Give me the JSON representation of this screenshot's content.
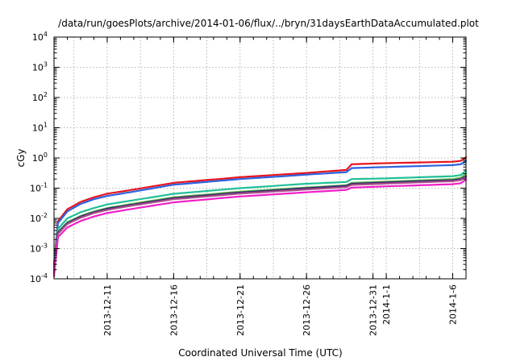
{
  "chart_data": {
    "type": "line",
    "title": "/data/run/goesPlots/archive/2014-01-06/flux/../bryn/31daysEarthDataAccumulated.plot",
    "xlabel": "Coordinated Universal Time (UTC)",
    "ylabel": "cGy",
    "yscale": "log",
    "ylim": [
      0.0001,
      10000
    ],
    "xlim": [
      "2013-12-07",
      "2014-01-07"
    ],
    "grid": true,
    "y_ticks": [
      {
        "base": "10",
        "exp": "-4",
        "value": 0.0001
      },
      {
        "base": "10",
        "exp": "-3",
        "value": 0.001
      },
      {
        "base": "10",
        "exp": "-2",
        "value": 0.01
      },
      {
        "base": "10",
        "exp": "-1",
        "value": 0.1
      },
      {
        "base": "10",
        "exp": "0",
        "value": 1
      },
      {
        "base": "10",
        "exp": "1",
        "value": 10
      },
      {
        "base": "10",
        "exp": "2",
        "value": 100
      },
      {
        "base": "10",
        "exp": "3",
        "value": 1000
      },
      {
        "base": "10",
        "exp": "4",
        "value": 10000
      }
    ],
    "x_ticks": [
      {
        "label": "2013-12-11",
        "date": "2013-12-11"
      },
      {
        "label": "2013-12-16",
        "date": "2013-12-16"
      },
      {
        "label": "2013-12-21",
        "date": "2013-12-21"
      },
      {
        "label": "2013-12-26",
        "date": "2013-12-26"
      },
      {
        "label": "2013-12-31",
        "date": "2013-12-31"
      },
      {
        "label": "2014-1-1",
        "date": "2014-01-01"
      },
      {
        "label": "2014-1-6",
        "date": "2014-01-06"
      }
    ],
    "series": [
      {
        "color": "#e8141c",
        "x": [
          "2013-12-07",
          "2013-12-07.3",
          "2013-12-08",
          "2013-12-09",
          "2013-12-10",
          "2013-12-11",
          "2013-12-13",
          "2013-12-16",
          "2013-12-21",
          "2013-12-26",
          "2013-12-29",
          "2013-12-29.4",
          "2014-01-01",
          "2014-01-06",
          "2014-01-06.6",
          "2014-01-07"
        ],
        "y": [
          0.0003,
          0.008,
          0.02,
          0.035,
          0.05,
          0.065,
          0.09,
          0.15,
          0.23,
          0.32,
          0.4,
          0.62,
          0.67,
          0.75,
          0.8,
          1.05
        ]
      },
      {
        "color": "#2c62e0",
        "x": [
          "2013-12-07",
          "2013-12-07.3",
          "2013-12-08",
          "2013-12-09",
          "2013-12-10",
          "2013-12-11",
          "2013-12-13",
          "2013-12-16",
          "2013-12-21",
          "2013-12-26",
          "2013-12-29",
          "2013-12-29.4",
          "2014-01-01",
          "2014-01-06",
          "2014-01-06.6",
          "2014-01-07"
        ],
        "y": [
          0.00025,
          0.007,
          0.017,
          0.03,
          0.043,
          0.055,
          0.077,
          0.13,
          0.2,
          0.28,
          0.34,
          0.46,
          0.5,
          0.58,
          0.62,
          0.8
        ]
      },
      {
        "color": "#1fc097",
        "x": [
          "2013-12-07",
          "2013-12-07.3",
          "2013-12-08",
          "2013-12-09",
          "2013-12-10",
          "2013-12-11",
          "2013-12-13",
          "2013-12-16",
          "2013-12-21",
          "2013-12-26",
          "2013-12-29",
          "2013-12-29.4",
          "2014-01-01",
          "2014-01-06",
          "2014-01-06.6",
          "2014-01-07"
        ],
        "y": [
          0.0002,
          0.0045,
          0.01,
          0.016,
          0.022,
          0.029,
          0.04,
          0.065,
          0.1,
          0.14,
          0.16,
          0.2,
          0.21,
          0.25,
          0.27,
          0.38
        ]
      },
      {
        "color": "#66c64a",
        "x": [
          "2013-12-07",
          "2013-12-07.3",
          "2013-12-08",
          "2013-12-09",
          "2013-12-10",
          "2013-12-11",
          "2013-12-13",
          "2013-12-16",
          "2013-12-21",
          "2013-12-26",
          "2013-12-29",
          "2013-12-29.4",
          "2014-01-01",
          "2014-01-06",
          "2014-01-06.6",
          "2014-01-07"
        ],
        "y": [
          0.00017,
          0.0036,
          0.0075,
          0.012,
          0.017,
          0.022,
          0.031,
          0.05,
          0.077,
          0.105,
          0.125,
          0.15,
          0.165,
          0.2,
          0.22,
          0.3
        ]
      },
      {
        "color": "#3a2a6e",
        "x": [
          "2013-12-07",
          "2013-12-07.3",
          "2013-12-08",
          "2013-12-09",
          "2013-12-10",
          "2013-12-11",
          "2013-12-13",
          "2013-12-16",
          "2013-12-21",
          "2013-12-26",
          "2013-12-29",
          "2013-12-29.4",
          "2014-01-01",
          "2014-01-06",
          "2014-01-06.6",
          "2014-01-07"
        ],
        "y": [
          0.00016,
          0.0034,
          0.007,
          0.0115,
          0.016,
          0.021,
          0.029,
          0.047,
          0.072,
          0.1,
          0.12,
          0.14,
          0.155,
          0.185,
          0.2,
          0.25
        ]
      },
      {
        "color": "#a8508a",
        "x": [
          "2013-12-07",
          "2013-12-07.3",
          "2013-12-08",
          "2013-12-09",
          "2013-12-10",
          "2013-12-11",
          "2013-12-13",
          "2013-12-16",
          "2013-12-21",
          "2013-12-26",
          "2013-12-29",
          "2013-12-29.4",
          "2014-01-01",
          "2014-01-06",
          "2014-01-06.6",
          "2014-01-07"
        ],
        "y": [
          0.00015,
          0.0031,
          0.0065,
          0.0105,
          0.015,
          0.019,
          0.027,
          0.043,
          0.066,
          0.09,
          0.108,
          0.128,
          0.142,
          0.17,
          0.185,
          0.23
        ]
      },
      {
        "color": "#f01fc8",
        "x": [
          "2013-12-07",
          "2013-12-07.3",
          "2013-12-08",
          "2013-12-09",
          "2013-12-10",
          "2013-12-11",
          "2013-12-13",
          "2013-12-16",
          "2013-12-21",
          "2013-12-26",
          "2013-12-29",
          "2013-12-29.4",
          "2014-01-01",
          "2014-01-06",
          "2014-01-06.6",
          "2014-01-07"
        ],
        "y": [
          0.00012,
          0.0024,
          0.005,
          0.0082,
          0.0115,
          0.015,
          0.021,
          0.034,
          0.053,
          0.073,
          0.088,
          0.104,
          0.115,
          0.135,
          0.145,
          0.19
        ]
      }
    ]
  }
}
